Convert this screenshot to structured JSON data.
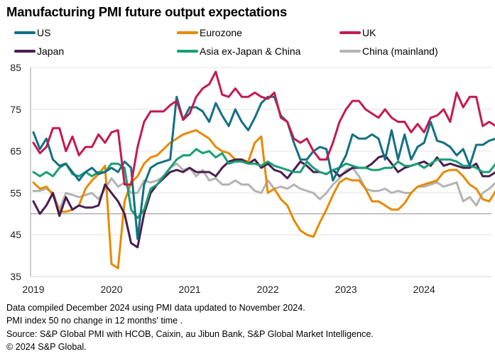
{
  "chart_data": {
    "type": "line",
    "title": "Manufacturing PMI future output expectations",
    "xlabel": "",
    "ylabel": "",
    "ylim": [
      35,
      85
    ],
    "yticks": [
      "85",
      "75",
      "65",
      "55",
      "45",
      "35"
    ],
    "ytick_values": [
      85,
      75,
      65,
      55,
      45,
      35
    ],
    "xticks": [
      "2019",
      "2020",
      "2021",
      "2022",
      "2023",
      "2024"
    ],
    "x_start": "2019-01",
    "x_end": "2024-11",
    "frequency": "monthly",
    "reference_line": 50,
    "grid": true,
    "legend_position": "top",
    "series": [
      {
        "name": "US",
        "color": "#137083",
        "values": [
          69.5,
          65.5,
          68,
          63,
          61.5,
          62,
          60,
          58,
          60,
          61,
          59.5,
          60,
          61,
          60,
          62.5,
          61,
          44,
          57,
          61,
          62,
          62.5,
          63,
          78,
          72.5,
          75.5,
          75.5,
          74.5,
          72,
          76.5,
          73.5,
          71,
          75,
          72,
          70,
          73,
          76.5,
          78,
          78,
          73.5,
          72,
          67,
          63,
          63,
          65,
          66,
          65.5,
          58,
          61,
          64,
          69,
          68,
          68,
          69,
          68,
          63,
          70,
          63,
          69,
          63,
          66,
          67,
          72,
          67.5,
          67,
          66,
          64,
          65.5,
          61.5,
          66.5,
          66.5,
          67.5,
          68,
          72
        ]
      },
      {
        "name": "Eurozone",
        "color": "#e68a00",
        "values": [
          57.5,
          56,
          56.5,
          54.5,
          50.5,
          50.5,
          51,
          52,
          56,
          58,
          59.5,
          61.5,
          38,
          37,
          53,
          57.5,
          59,
          62,
          63.5,
          64,
          65.5,
          67,
          68,
          69,
          69.5,
          70,
          69,
          68,
          66,
          65,
          64.5,
          63,
          63,
          62.5,
          67,
          68.5,
          55,
          56,
          53.5,
          52,
          48.5,
          46,
          45,
          44.5,
          48,
          51,
          54.5,
          57.5,
          58.5,
          58,
          58,
          56,
          53,
          53,
          52,
          51,
          51,
          52.5,
          55,
          56.5,
          57,
          57.5,
          58,
          60,
          60.5,
          60.5,
          59,
          57,
          56,
          53.5,
          53,
          55.5
        ]
      },
      {
        "name": "UK",
        "color": "#c31a52",
        "values": [
          67,
          64.5,
          66,
          70.5,
          70.5,
          65,
          68.5,
          64,
          66,
          66,
          69,
          67,
          69.5,
          70,
          57,
          57,
          66,
          72,
          74.5,
          74.5,
          74.5,
          76,
          77,
          72.5,
          74,
          78,
          80,
          81,
          84,
          78.5,
          78,
          80,
          78,
          78,
          79,
          78,
          77.5,
          79,
          73,
          72,
          68,
          67,
          68,
          65,
          63,
          63,
          67,
          72,
          75,
          77,
          77,
          75,
          74,
          73,
          75,
          73,
          72,
          72,
          69.5,
          71.5,
          69.5,
          73,
          73.5,
          75,
          72,
          79,
          75.5,
          78,
          78,
          71,
          72,
          71
        ]
      },
      {
        "name": "Japan",
        "color": "#4a1d4f",
        "values": [
          53,
          50,
          52,
          55,
          49.5,
          54,
          51,
          52,
          51.5,
          51.5,
          52,
          57,
          55,
          53,
          50,
          43,
          42,
          50,
          55,
          57,
          58.5,
          60,
          60.5,
          60,
          61,
          60,
          60,
          60,
          59,
          61,
          62.5,
          63,
          63,
          62,
          63,
          61,
          62,
          60.5,
          60,
          58.5,
          60.5,
          62.5,
          61.5,
          60,
          60,
          59.5,
          60.5,
          59,
          60,
          61,
          61,
          61,
          62,
          63.5,
          64,
          62,
          60,
          61,
          61.5,
          62,
          62.5,
          61.5,
          63.5,
          61.5,
          62,
          61.5,
          61,
          61,
          62,
          59,
          59,
          60
        ]
      },
      {
        "name": "Asia ex-Japan & China",
        "color": "#1a9e77",
        "values": [
          60,
          59,
          60,
          59,
          61,
          62,
          59.5,
          59,
          60,
          59,
          60,
          60,
          62,
          62,
          61,
          51,
          49,
          51,
          56,
          57,
          59,
          61,
          63,
          64,
          64,
          65.5,
          64.5,
          65,
          63.5,
          64.5,
          62,
          62.5,
          62.5,
          62,
          62,
          61.5,
          62.5,
          61.5,
          61,
          60.5,
          60,
          60,
          62.5,
          61,
          60,
          59.5,
          60.5,
          61,
          62,
          61.5,
          61,
          61,
          60.5,
          60.5,
          61,
          61,
          62.5,
          61.5,
          61.5,
          62,
          61,
          62,
          63,
          63,
          63,
          62.5,
          61.5,
          61.5,
          61,
          60,
          60,
          62
        ]
      },
      {
        "name": "China (mainland)",
        "color": "#b3b3b3",
        "values": [
          55.5,
          55.5,
          56,
          55,
          51,
          55,
          54.5,
          54,
          54.5,
          55,
          53.5,
          56,
          58.5,
          56.5,
          57.5,
          55,
          55,
          58,
          57.5,
          58,
          59,
          61,
          62,
          60.5,
          61,
          59,
          60.5,
          58,
          58.5,
          57,
          57,
          58,
          57,
          57,
          55.5,
          55,
          58,
          56,
          56.5,
          56,
          57,
          56,
          55.5,
          55,
          53.5,
          55,
          57,
          58.5,
          60.5,
          61,
          59,
          56,
          55.5,
          55.5,
          56,
          55,
          55.5,
          55,
          55,
          56.5,
          56.5,
          57,
          57.5,
          56.5,
          57,
          57.5,
          53,
          54,
          52,
          55,
          56,
          57.5
        ]
      }
    ]
  },
  "notes": [
    "Data compiled December 2024 using PMI data updated to November 2024.",
    "PMI index 50 no change in 12 months' time .",
    "Source: S&P Global PMI with HCOB, Caixin, au Jibun Bank, S&P Global Market Intelligence.",
    "© 2024 S&P Global."
  ]
}
